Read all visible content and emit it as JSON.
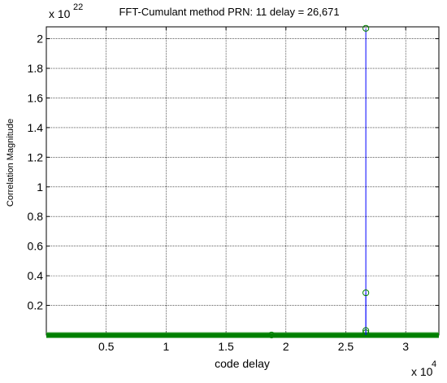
{
  "chart_data": {
    "type": "line",
    "title": "FFT-Cumulant method PRN: 11 delay = 26,671",
    "xlabel": "code delay",
    "ylabel": "Correlation Magnitude",
    "x_exponent": {
      "base": "x 10",
      "power": "4"
    },
    "y_exponent": {
      "base": "x 10",
      "power": "22"
    },
    "xlim": [
      0,
      32768
    ],
    "ylim": [
      0,
      2.08
    ],
    "y_scale_factor": 1e+22,
    "x_ticks": [
      5000,
      10000,
      15000,
      20000,
      25000,
      30000
    ],
    "x_tick_labels": [
      "0.5",
      "1",
      "1.5",
      "2",
      "2.5",
      "3"
    ],
    "y_ticks": [
      0.2,
      0.4,
      0.6,
      0.8,
      1.0,
      1.2,
      1.4,
      1.6,
      1.8,
      2.0
    ],
    "y_tick_labels": [
      "0.2",
      "0.4",
      "0.6",
      "0.8",
      "1",
      "1.2",
      "1.4",
      "1.6",
      "1.8",
      "2"
    ],
    "grid": true,
    "series": [
      {
        "color": "#0000ff",
        "marker_color": "#008000",
        "stems": [
          {
            "x": 26671,
            "y": 2.07
          },
          {
            "x": 26671,
            "y": 0.285
          },
          {
            "x": 26671,
            "y": 0.03
          },
          {
            "x": 26671,
            "y": 0.015
          },
          {
            "x": 18800,
            "y": 0.0
          }
        ],
        "baseline_range": [
          0,
          32768
        ],
        "baseline_value": 0.0
      }
    ]
  }
}
